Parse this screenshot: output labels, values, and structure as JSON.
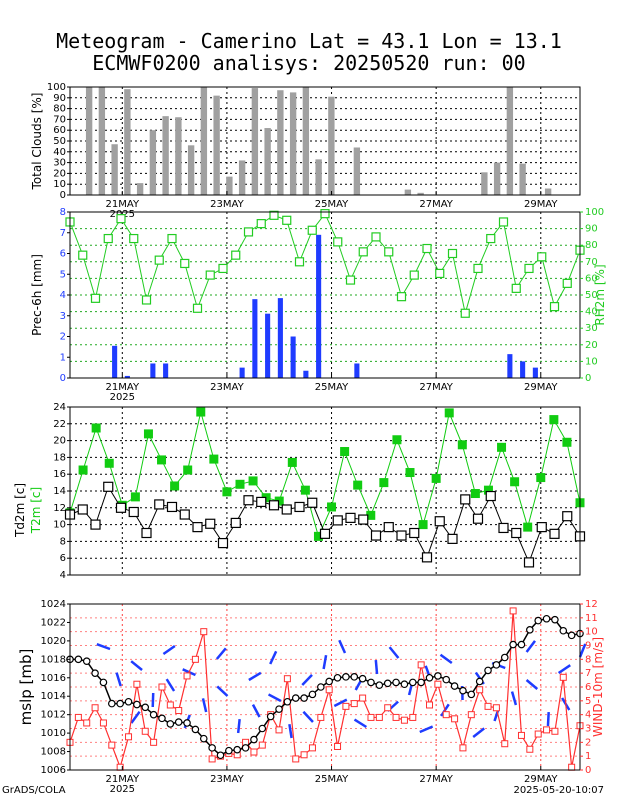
{
  "title": "Meteogram - Camerino Lat = 43.1 Lon = 13.1",
  "subtitle": "ECMWF0200 analisys: 20250520 run: 00",
  "footer_left": "GrADS/COLA",
  "footer_right": "2025-05-20-10:07",
  "x_ticks": [
    "21MAY",
    "23MAY",
    "25MAY",
    "27MAY",
    "29MAY"
  ],
  "x_year": "2025",
  "colors": {
    "clouds": "#a0a0a0",
    "precip": "#1f3cff",
    "rh": "#22cc22",
    "t2m": "#11cc11",
    "td2m": "#000000",
    "mslp": "#000000",
    "wind": "#ff3030",
    "barbs": "#1f3cff",
    "grid": "#000000"
  },
  "chart_data": [
    {
      "type": "bar",
      "ylabel": "Total Clouds [%]",
      "ylim": [
        0,
        100
      ],
      "yticks": [
        0,
        10,
        20,
        30,
        40,
        50,
        60,
        70,
        80,
        90,
        100
      ],
      "values": [
        0,
        100,
        100,
        47,
        98,
        11,
        60,
        73,
        72,
        46,
        100,
        92,
        17,
        32,
        99,
        62,
        97,
        95,
        100,
        33,
        91,
        0,
        44,
        0,
        0,
        0,
        5,
        2,
        0,
        0,
        0,
        0,
        21,
        30,
        100,
        29,
        0,
        6,
        0,
        0
      ]
    },
    {
      "type": "bar",
      "ylabel": "Prec-6h [mm]",
      "ylim": [
        0,
        8
      ],
      "yticks": [
        0,
        1,
        2,
        3,
        4,
        5,
        6,
        7,
        8
      ],
      "values": [
        0,
        0,
        0,
        1.55,
        0.1,
        0,
        0.7,
        0.7,
        0,
        0,
        0,
        0,
        0,
        0.5,
        3.8,
        3.1,
        3.85,
        2.0,
        0.35,
        6.9,
        0,
        0,
        0.7,
        0,
        0,
        0,
        0,
        0,
        0,
        0,
        0,
        0,
        0,
        0,
        1.15,
        0.8,
        0.5,
        0,
        0,
        0
      ]
    },
    {
      "type": "line",
      "ylabel": "RH2m [%]",
      "ylim": [
        0,
        100
      ],
      "yticks": [
        0,
        10,
        20,
        30,
        40,
        50,
        60,
        70,
        80,
        90,
        100
      ],
      "values": [
        94,
        74,
        48,
        84,
        96,
        84,
        47,
        71,
        84,
        69,
        42,
        62,
        66,
        74,
        88,
        93,
        98,
        95,
        70,
        89,
        99,
        82,
        59,
        76,
        85,
        76,
        49,
        62,
        78,
        63,
        75,
        39,
        66,
        84,
        94,
        54,
        66,
        73,
        43,
        57,
        77
      ]
    },
    {
      "type": "line",
      "ylabel": "T2m [c]",
      "ylim": [
        4,
        24
      ],
      "yticks": [
        4,
        6,
        8,
        10,
        12,
        14,
        16,
        18,
        20,
        22,
        24
      ],
      "values": [
        11.4,
        16.5,
        21.5,
        17.3,
        12.3,
        13.3,
        20.8,
        17.7,
        14.6,
        16.5,
        23.4,
        17.8,
        13.9,
        14.8,
        15.2,
        13.2,
        12.8,
        17.4,
        14.1,
        8.6,
        12.1,
        18.7,
        14.7,
        11.1,
        15.0,
        20.1,
        16.2,
        10.0,
        15.5,
        23.3,
        19.5,
        13.7,
        14.1,
        19.2,
        15.1,
        9.7,
        15.6,
        22.5,
        19.8,
        12.6
      ]
    },
    {
      "type": "line",
      "ylabel": "Td2m [c]",
      "ylim": [
        4,
        24
      ],
      "yticks": [
        4,
        6,
        8,
        10,
        12,
        14,
        16,
        18,
        20,
        22,
        24
      ],
      "values": [
        11.2,
        11.8,
        10.0,
        14.5,
        12.0,
        11.5,
        9.0,
        12.4,
        12.1,
        11.2,
        9.7,
        10.1,
        7.8,
        10.2,
        12.9,
        12.7,
        12.3,
        11.8,
        12.1,
        12.6,
        8.9,
        10.5,
        10.8,
        10.6,
        8.7,
        9.7,
        8.7,
        9.0,
        6.1,
        10.4,
        8.3,
        13.0,
        10.7,
        13.4,
        9.6,
        9.0,
        5.5,
        9.7,
        8.9,
        11.0,
        8.6
      ]
    },
    {
      "type": "line",
      "ylabel": "mslp [mb]",
      "ylim": [
        1006,
        1024
      ],
      "yticks": [
        1006,
        1008,
        1010,
        1012,
        1014,
        1016,
        1018,
        1020,
        1022,
        1024
      ],
      "values": [
        1018.0,
        1018.0,
        1017.8,
        1016.5,
        1015.5,
        1013.2,
        1013.2,
        1013.4,
        1013.1,
        1012.8,
        1012.0,
        1011.6,
        1011.0,
        1011.2,
        1011.1,
        1010.4,
        1009.4,
        1008.4,
        1007.6,
        1008.1,
        1008.2,
        1008.4,
        1009.3,
        1010.5,
        1011.8,
        1012.6,
        1013.4,
        1013.8,
        1013.8,
        1014.2,
        1015.0,
        1015.6,
        1016.0,
        1016.1,
        1016.1,
        1015.9,
        1015.5,
        1015.2,
        1015.4,
        1015.5,
        1015.3,
        1015.5,
        1015.5,
        1016.0,
        1016.2,
        1015.8,
        1015.1,
        1014.6,
        1014.2,
        1015.6,
        1016.8,
        1017.4,
        1018.2,
        1019.6,
        1019.6,
        1021.2,
        1022.2,
        1022.4,
        1022.3,
        1021.1,
        1020.6,
        1020.8
      ]
    },
    {
      "type": "line",
      "ylabel": "WIND-10m [m/s]",
      "ylim": [
        0,
        12
      ],
      "yticks": [
        0,
        1,
        2,
        3,
        4,
        5,
        6,
        7,
        8,
        9,
        10,
        11,
        12
      ],
      "values": [
        2.0,
        3.8,
        3.4,
        4.5,
        3.4,
        1.8,
        0.2,
        2.4,
        6.2,
        2.8,
        2.0,
        6.0,
        4.7,
        4.3,
        6.8,
        8.0,
        10.0,
        0.8,
        1.0,
        1.2,
        1.1,
        2.0,
        1.3,
        1.8,
        4.0,
        2.9,
        6.6,
        0.8,
        1.1,
        1.6,
        3.8,
        5.8,
        1.7,
        4.6,
        4.8,
        5.2,
        3.8,
        3.8,
        4.5,
        3.8,
        3.6,
        3.8,
        7.6,
        4.7,
        6.2,
        4.0,
        3.7,
        1.6,
        4.0,
        5.8,
        4.6,
        4.5,
        1.9,
        11.5,
        2.5,
        1.5,
        2.6,
        2.9,
        2.8,
        6.7,
        0.2,
        3.2
      ]
    }
  ]
}
